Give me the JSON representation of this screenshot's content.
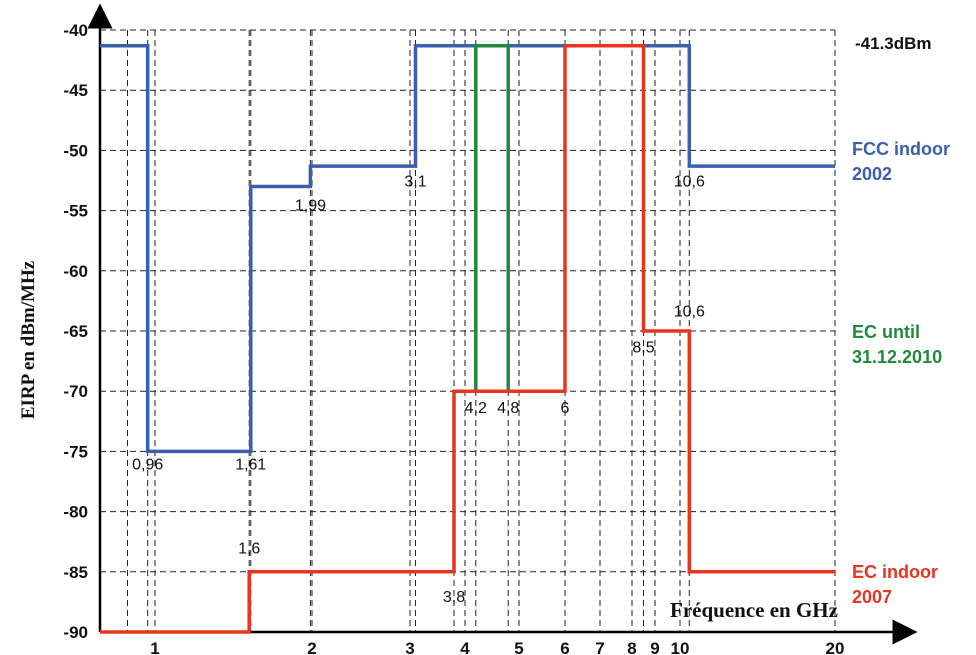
{
  "chart_data": {
    "type": "line",
    "title": "",
    "ylabel": "EIRP en dBm/MHz",
    "xlabel": "Fréquence en GHz",
    "ylim": [
      -90,
      -40
    ],
    "yticks": [
      -40,
      -45,
      -50,
      -55,
      -60,
      -65,
      -70,
      -75,
      -80,
      -85,
      -90
    ],
    "x_scale": "categorical-nonlinear",
    "xticks": [
      "1",
      "2",
      "3",
      "4",
      "5",
      "6",
      "7",
      "8",
      "9",
      "10",
      "20"
    ],
    "x_annotation_values": [
      0.96,
      1.6,
      1.61,
      1.99,
      3.1,
      3.8,
      4.2,
      4.8,
      6,
      8.5,
      10.6
    ],
    "grid": true,
    "reference_label": "-41.3dBm",
    "series": [
      {
        "name": "FCC indoor 2002",
        "color": "#3a5fad",
        "step_points": [
          [
            0.7,
            -41.3
          ],
          [
            0.96,
            -41.3
          ],
          [
            0.96,
            -75
          ],
          [
            1.61,
            -75
          ],
          [
            1.61,
            -53
          ],
          [
            1.99,
            -53
          ],
          [
            1.99,
            -51.3
          ],
          [
            3.1,
            -51.3
          ],
          [
            3.1,
            -41.3
          ],
          [
            10.6,
            -41.3
          ],
          [
            10.6,
            -51.3
          ],
          [
            20,
            -51.3
          ]
        ]
      },
      {
        "name": "EC until 31.12.2010",
        "color": "#1f8a3c",
        "step_points": [
          [
            4.2,
            -70
          ],
          [
            4.2,
            -41.3
          ],
          [
            4.8,
            -41.3
          ],
          [
            4.8,
            -70
          ]
        ]
      },
      {
        "name": "EC indoor 2007",
        "color": "#e8351f",
        "step_points": [
          [
            0.7,
            -90
          ],
          [
            1.6,
            -90
          ],
          [
            1.6,
            -85
          ],
          [
            3.8,
            -85
          ],
          [
            3.8,
            -70
          ],
          [
            6,
            -70
          ],
          [
            6,
            -41.3
          ],
          [
            8.5,
            -41.3
          ],
          [
            8.5,
            -65
          ],
          [
            10.6,
            -65
          ],
          [
            10.6,
            -85
          ],
          [
            20,
            -85
          ]
        ]
      }
    ],
    "annotations": [
      {
        "text": "0,96",
        "x": 0.96,
        "y": -76.5
      },
      {
        "text": "1,61",
        "x": 1.61,
        "y": -76.5
      },
      {
        "text": "1,99",
        "x": 1.99,
        "y": -55
      },
      {
        "text": "3,1",
        "x": 3.1,
        "y": -53
      },
      {
        "text": "10,6",
        "x": 10.6,
        "y": -53
      },
      {
        "text": "1,6",
        "x": 1.6,
        "y": -83.5
      },
      {
        "text": "3,8",
        "x": 3.8,
        "y": -87.5
      },
      {
        "text": "4,2",
        "x": 4.2,
        "y": -71.8
      },
      {
        "text": "4,8",
        "x": 4.8,
        "y": -71.8
      },
      {
        "text": "6",
        "x": 6,
        "y": -71.8
      },
      {
        "text": "8,5",
        "x": 8.5,
        "y": -66.8
      },
      {
        "text": "10,6",
        "x": 10.6,
        "y": -63.8
      }
    ],
    "legend": [
      {
        "lines": [
          "FCC indoor",
          "2002"
        ],
        "color": "#3a5fad",
        "placement": "right"
      },
      {
        "lines": [
          "EC until",
          "31.12.2010"
        ],
        "color": "#1f8a3c",
        "placement": "right"
      },
      {
        "lines": [
          "EC indoor",
          "2007"
        ],
        "color": "#e8351f",
        "placement": "right"
      }
    ]
  }
}
